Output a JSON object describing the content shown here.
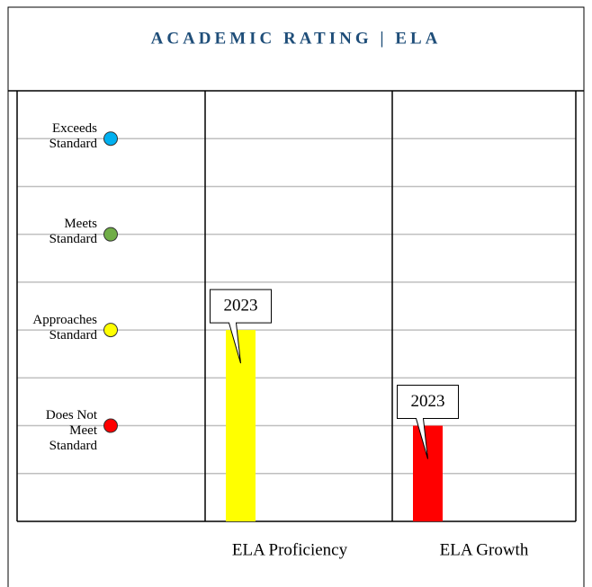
{
  "chart_data": {
    "type": "bar",
    "title": "ACADEMIC RATING | ELA",
    "categories": [
      "ELA Proficiency",
      "ELA Growth"
    ],
    "values": [
      2,
      1
    ],
    "colors": [
      "#ffff00",
      "#ff0000"
    ],
    "bar_annotations": [
      "2023",
      "2023"
    ],
    "ylim": [
      0,
      4.5
    ],
    "yticks": [
      {
        "value": 1,
        "label": "Does Not\nMeet\nStandard"
      },
      {
        "value": 2,
        "label": "Approaches\nStandard"
      },
      {
        "value": 3,
        "label": "Meets\nStandard"
      },
      {
        "value": 4,
        "label": "Exceeds\nStandard"
      }
    ],
    "minor_yticks": [
      0.5,
      1.5,
      2.5,
      3.5
    ],
    "level_colors": [
      "#ff0000",
      "#ffff00",
      "#70ad47",
      "#00b0f0"
    ],
    "grid": true
  }
}
